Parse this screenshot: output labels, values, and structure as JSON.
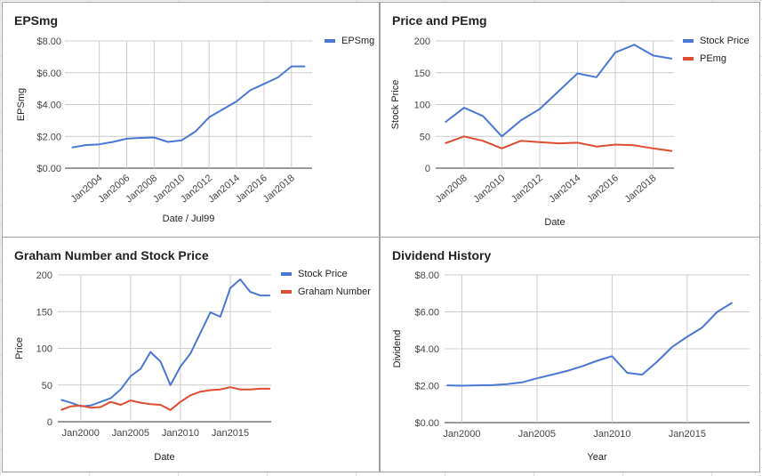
{
  "chart_data": [
    {
      "type": "line",
      "title": "EPSmg",
      "xlabel": "Date / Jul99",
      "ylabel": "EPSmg",
      "x_ticks": [
        "Jan2004",
        "Jan2006",
        "Jan2008",
        "Jan2010",
        "Jan2012",
        "Jan2014",
        "Jan2016",
        "Jan2018"
      ],
      "y_ticks": [
        "$0.00",
        "$2.00",
        "$4.00",
        "$6.00",
        "$8.00"
      ],
      "ylim": [
        0,
        8
      ],
      "xlim": [
        2001.5,
        2019.5
      ],
      "grid": true,
      "legend": "right",
      "series": [
        {
          "name": "EPSmg",
          "color": "#4a77d4",
          "x": [
            2002,
            2003,
            2004,
            2005,
            2006,
            2007,
            2008,
            2009,
            2010,
            2011,
            2012,
            2013,
            2014,
            2015,
            2016,
            2017,
            2018,
            2019
          ],
          "y": [
            1.3,
            1.45,
            1.5,
            1.65,
            1.85,
            1.9,
            1.93,
            1.65,
            1.75,
            2.3,
            3.2,
            3.7,
            4.2,
            4.9,
            5.3,
            5.7,
            6.4,
            6.4
          ]
        }
      ]
    },
    {
      "type": "line",
      "title": "Price and PEmg",
      "xlabel": "Date",
      "ylabel": "Stock Price",
      "x_ticks": [
        "Jan2008",
        "Jan2010",
        "Jan2012",
        "Jan2014",
        "Jan2016",
        "Jan2018"
      ],
      "y_ticks": [
        "0",
        "50",
        "100",
        "150",
        "200"
      ],
      "ylim": [
        0,
        200
      ],
      "xlim": [
        2006.5,
        2019.1
      ],
      "grid": true,
      "legend": "right",
      "series": [
        {
          "name": "Stock Price",
          "color": "#4a77d4",
          "x": [
            2007,
            2008,
            2009,
            2010,
            2011,
            2012,
            2013,
            2014,
            2015,
            2016,
            2017,
            2018,
            2019
          ],
          "y": [
            72,
            95,
            82,
            50,
            75,
            93,
            121,
            149,
            143,
            182,
            194,
            177,
            172
          ]
        },
        {
          "name": "PEmg",
          "color": "#df4c31",
          "x": [
            2007,
            2008,
            2009,
            2010,
            2011,
            2012,
            2013,
            2014,
            2015,
            2016,
            2017,
            2018,
            2019
          ],
          "y": [
            39,
            50,
            43,
            31,
            43,
            41,
            39,
            40,
            34,
            37,
            36,
            31,
            27
          ]
        }
      ]
    },
    {
      "type": "line",
      "title": "Graham Number and Stock Price",
      "xlabel": "Date",
      "ylabel": "Price",
      "x_ticks": [
        "Jan2000",
        "Jan2005",
        "Jan2010",
        "Jan2015"
      ],
      "y_ticks": [
        "0",
        "50",
        "100",
        "150",
        "200"
      ],
      "ylim": [
        0,
        200
      ],
      "xlim": [
        1997.7,
        2019.1
      ],
      "grid": true,
      "legend": "right",
      "series": [
        {
          "name": "Stock Price",
          "color": "#4a77d4",
          "x": [
            1998,
            1999,
            2000,
            2001,
            2002,
            2003,
            2004,
            2005,
            2006,
            2007,
            2008,
            2009,
            2010,
            2011,
            2012,
            2013,
            2014,
            2015,
            2016,
            2017,
            2018,
            2019
          ],
          "y": [
            30,
            26,
            21,
            22,
            27,
            32,
            44,
            62,
            72,
            95,
            82,
            50,
            75,
            93,
            121,
            149,
            143,
            182,
            194,
            177,
            172,
            172
          ]
        },
        {
          "name": "Graham Number",
          "color": "#df4c31",
          "x": [
            1998,
            1999,
            2000,
            2001,
            2002,
            2003,
            2004,
            2005,
            2006,
            2007,
            2008,
            2009,
            2010,
            2011,
            2012,
            2013,
            2014,
            2015,
            2016,
            2017,
            2018,
            2019
          ],
          "y": [
            16,
            21,
            22,
            19,
            20,
            27,
            23,
            29,
            26,
            24,
            23,
            16,
            27,
            36,
            41,
            43,
            44,
            47,
            44,
            44,
            45,
            45
          ]
        }
      ]
    },
    {
      "type": "line",
      "title": "Dividend History",
      "xlabel": "Year",
      "ylabel": "Dividend",
      "x_ticks": [
        "Jan2000",
        "Jan2005",
        "Jan2010",
        "Jan2015"
      ],
      "y_ticks": [
        "$0.00",
        "$2.00",
        "$4.00",
        "$6.00",
        "$8.00"
      ],
      "ylim": [
        0,
        8
      ],
      "xlim": [
        1998.85,
        2019.15
      ],
      "grid": true,
      "series": [
        {
          "name": "Dividend",
          "color": "#4a77d4",
          "x": [
            1999,
            2000,
            2001,
            2002,
            2003,
            2004,
            2005,
            2006,
            2007,
            2008,
            2009,
            2010,
            2011,
            2012,
            2013,
            2014,
            2015,
            2016,
            2017,
            2018
          ],
          "y": [
            2.02,
            2.0,
            2.02,
            2.03,
            2.08,
            2.18,
            2.4,
            2.6,
            2.8,
            3.05,
            3.35,
            3.6,
            2.7,
            2.6,
            3.3,
            4.1,
            4.65,
            5.15,
            6.0,
            6.5
          ]
        }
      ]
    }
  ]
}
